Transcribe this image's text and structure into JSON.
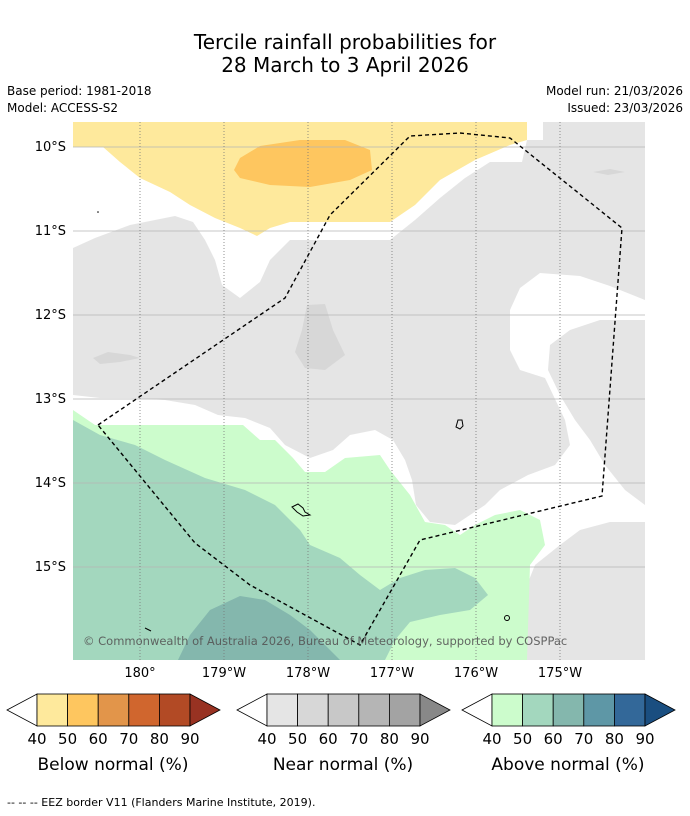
{
  "title": {
    "line1": "Tercile rainfall probabilities for",
    "line2": "28 March to 3 April 2026"
  },
  "meta": {
    "base_period": "Base period: 1981-2018",
    "model": "Model: ACCESS-S2",
    "model_run": "Model run: 21/03/2026",
    "issued": "Issued: 23/03/2026"
  },
  "map": {
    "lat_labels": [
      "10°S",
      "11°S",
      "12°S",
      "13°S",
      "14°S",
      "15°S"
    ],
    "lon_labels": [
      "180°",
      "179°W",
      "178°W",
      "177°W",
      "176°W",
      "175°W"
    ],
    "copyright": "© Commonwealth of Australia 2026, Bureau of Meteorology, supported by COSPPac"
  },
  "legend": {
    "ticks": [
      "40",
      "50",
      "60",
      "70",
      "80",
      "90"
    ],
    "below": {
      "label": "Below normal (%)",
      "colors": [
        "#fee99c",
        "#fec65f",
        "#e2954a",
        "#d0662e",
        "#b24a25",
        "#983222"
      ]
    },
    "near": {
      "label": "Near normal (%)",
      "colors": [
        "#e5e5e5",
        "#d7d7d7",
        "#c8c8c8",
        "#b5b5b5",
        "#a3a3a3",
        "#888888"
      ]
    },
    "above": {
      "label": "Above normal (%)",
      "colors": [
        "#ccfccc",
        "#a3d7be",
        "#84b7ad",
        "#5e97a6",
        "#336899",
        "#1a4e80"
      ]
    }
  },
  "footnote": "--  --  -- EEZ border V11 (Flanders Marine Institute, 2019)."
}
